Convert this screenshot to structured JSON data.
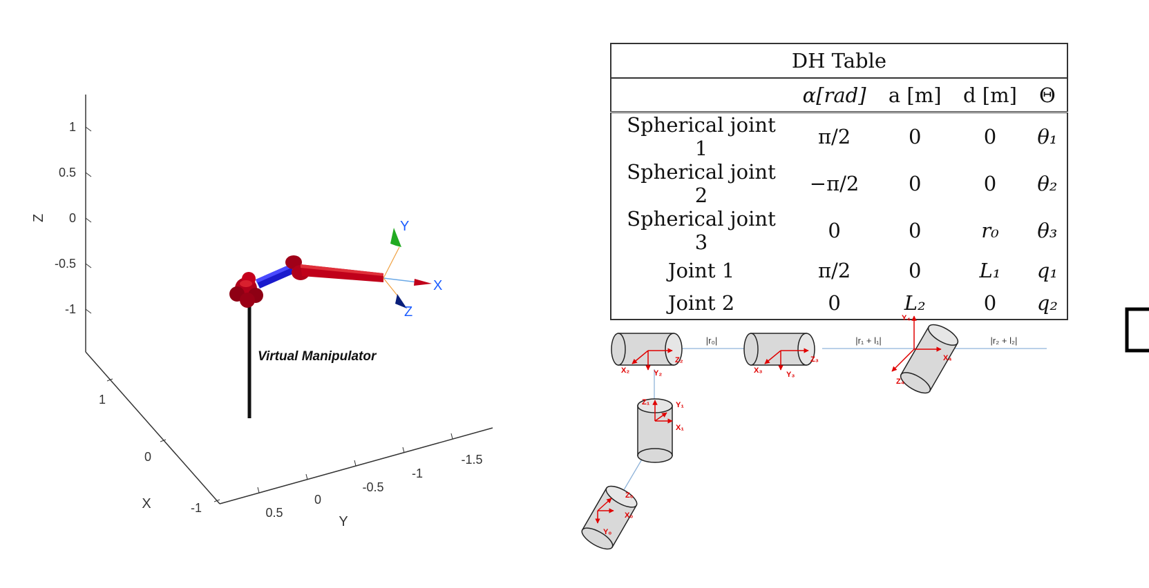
{
  "plot": {
    "z_axis_label": "Z",
    "x_axis_label": "X",
    "y_axis_label": "Y",
    "z_ticks": [
      "1",
      "0.5",
      "0",
      "-0.5",
      "-1"
    ],
    "x_ticks": [
      "1",
      "0",
      "-1"
    ],
    "y_ticks": [
      "0.5",
      "0",
      "-0.5",
      "-1",
      "-1.5"
    ],
    "manipulator_label": "Virtual Manipulator",
    "frame_labels": {
      "x": "X",
      "y": "Y",
      "z": "Z"
    },
    "colors": {
      "link": "#c0001a",
      "joint_link": "#1a1acc",
      "frame_x": "#1b5cff",
      "frame_y": "#22aa22",
      "frame_z": "#0a1f7a",
      "base": "#111111"
    }
  },
  "dh_table": {
    "title": "DH Table",
    "headers": [
      "",
      "α[rad]",
      "a [m]",
      "d [m]",
      "Θ"
    ],
    "rows": [
      [
        "Spherical joint 1",
        "π/2",
        "0",
        "0",
        "θ₁"
      ],
      [
        "Spherical joint 2",
        "−π/2",
        "0",
        "0",
        "θ₂"
      ],
      [
        "Spherical joint 3",
        "0",
        "0",
        "r₀",
        "θ₃"
      ],
      [
        "Joint 1",
        "π/2",
        "0",
        "L₁",
        "q₁"
      ],
      [
        "Joint 2",
        "0",
        "L₂",
        "0",
        "q₂"
      ]
    ]
  },
  "kinematic_diagram": {
    "link_labels": [
      "|r₀|",
      "|r₁ + l₁|",
      "|r₂ + l₂|"
    ],
    "frame_labels": {
      "f0": [
        "Z₀",
        "X₀",
        "Y₀"
      ],
      "f1": [
        "Z₁",
        "Y₁",
        "X₁"
      ],
      "f2": [
        "Z₂",
        "X₂",
        "Y₂"
      ],
      "f3": [
        "Z₃",
        "X₃",
        "Y₃"
      ],
      "f4": [
        "Y₄",
        "X₄",
        "Z₄"
      ]
    },
    "colors": {
      "axis": "#e00000",
      "body_fill": "#d9d9d9",
      "body_stroke": "#222222",
      "link": "#8fb3d9",
      "gripper": "#000000"
    }
  }
}
